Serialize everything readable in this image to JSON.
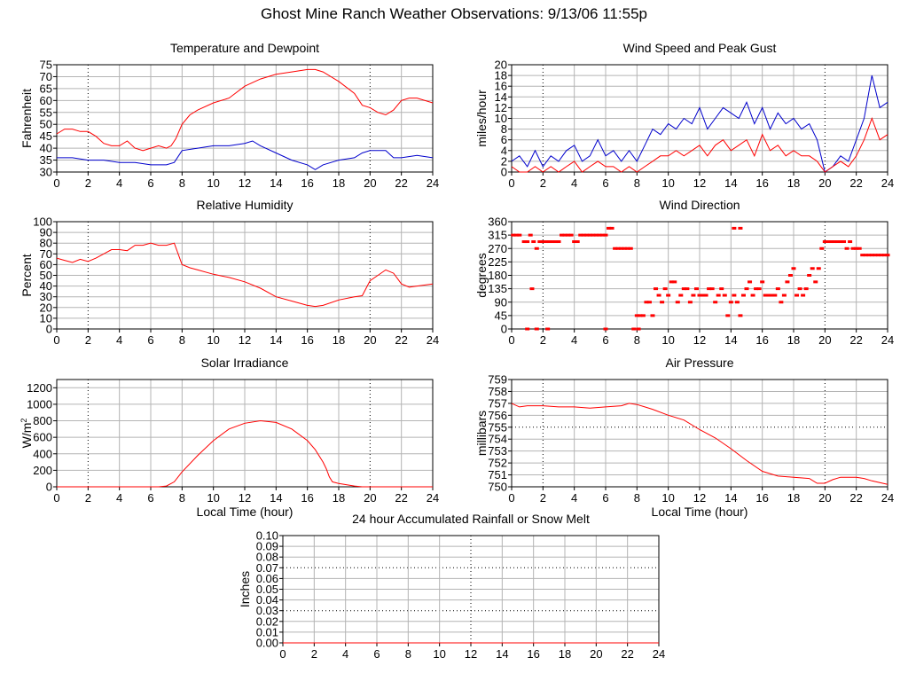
{
  "page": {
    "title": "Ghost Mine Ranch Weather Observations: 9/13/06 11:55p"
  },
  "colors": {
    "red": "#ff0000",
    "blue": "#0000cc",
    "grid": "#b4b4b4",
    "axis": "#000000"
  },
  "chart_data": [
    {
      "id": "temp",
      "type": "line",
      "title": "Temperature and Dewpoint",
      "xlabel": "",
      "ylabel": "Fahrenheit",
      "xlim": [
        0,
        24
      ],
      "ylim": [
        30,
        75
      ],
      "xticks": [
        0,
        2,
        4,
        6,
        8,
        10,
        12,
        14,
        16,
        18,
        20,
        22,
        24
      ],
      "yticks": [
        30,
        35,
        40,
        45,
        50,
        55,
        60,
        65,
        70,
        75
      ],
      "series": [
        {
          "color": "#ff0000",
          "x": [
            0,
            0.5,
            1,
            1.5,
            2,
            2.5,
            3,
            3.5,
            4,
            4.5,
            5,
            5.5,
            6,
            6.5,
            7,
            7.3,
            7.6,
            8,
            8.5,
            9,
            10,
            11,
            12,
            13,
            14,
            15,
            16,
            16.5,
            17,
            18,
            19,
            19.5,
            20,
            20.5,
            21,
            21.5,
            22,
            22.5,
            23,
            24
          ],
          "values": [
            46,
            48,
            48,
            47,
            47,
            45,
            42,
            41,
            41,
            43,
            40,
            39,
            40,
            41,
            40,
            41,
            44,
            50,
            54,
            56,
            59,
            61,
            66,
            69,
            71,
            72,
            73,
            73,
            72,
            68,
            63,
            58,
            57,
            55,
            54,
            56,
            60,
            61,
            61,
            59
          ]
        },
        {
          "color": "#0000cc",
          "x": [
            0,
            1,
            2,
            3,
            4,
            5,
            6,
            7,
            7.5,
            8,
            9,
            10,
            11,
            12,
            12.5,
            13,
            14,
            15,
            16,
            16.5,
            17,
            18,
            19,
            19.5,
            20,
            21,
            21.5,
            22,
            23,
            24
          ],
          "values": [
            36,
            36,
            35,
            35,
            34,
            34,
            33,
            33,
            34,
            39,
            40,
            41,
            41,
            42,
            43,
            41,
            38,
            35,
            33,
            31,
            33,
            35,
            36,
            38,
            39,
            39,
            36,
            36,
            37,
            36
          ]
        }
      ]
    },
    {
      "id": "wind",
      "type": "line",
      "title": "Wind Speed and Peak Gust",
      "xlabel": "",
      "ylabel": "miles/hour",
      "xlim": [
        0,
        24
      ],
      "ylim": [
        0,
        20
      ],
      "xticks": [
        0,
        2,
        4,
        6,
        8,
        10,
        12,
        14,
        16,
        18,
        20,
        22,
        24
      ],
      "yticks": [
        0,
        2,
        4,
        6,
        8,
        10,
        12,
        14,
        16,
        18,
        20
      ],
      "series": [
        {
          "color": "#0000cc",
          "x": [
            0,
            0.5,
            1,
            1.5,
            2,
            2.5,
            3,
            3.5,
            4,
            4.5,
            5,
            5.5,
            6,
            6.5,
            7,
            7.5,
            8,
            8.5,
            9,
            9.5,
            10,
            10.5,
            11,
            11.5,
            12,
            12.5,
            13,
            13.5,
            14,
            14.5,
            15,
            15.5,
            16,
            16.5,
            17,
            17.5,
            18,
            18.5,
            19,
            19.5,
            20,
            20.5,
            21,
            21.5,
            22,
            22.5,
            23,
            23.5,
            24
          ],
          "values": [
            2,
            3,
            1,
            4,
            1,
            3,
            2,
            4,
            5,
            2,
            3,
            6,
            3,
            4,
            2,
            4,
            2,
            5,
            8,
            7,
            9,
            8,
            10,
            9,
            12,
            8,
            10,
            12,
            11,
            10,
            13,
            9,
            12,
            8,
            11,
            9,
            10,
            8,
            9,
            6,
            0,
            1,
            3,
            2,
            6,
            10,
            18,
            12,
            13
          ]
        },
        {
          "color": "#ff0000",
          "x": [
            0,
            0.5,
            1,
            1.5,
            2,
            2.5,
            3,
            3.5,
            4,
            4.5,
            5,
            5.5,
            6,
            6.5,
            7,
            7.5,
            8,
            8.5,
            9,
            9.5,
            10,
            10.5,
            11,
            11.5,
            12,
            12.5,
            13,
            13.5,
            14,
            14.5,
            15,
            15.5,
            16,
            16.5,
            17,
            17.5,
            18,
            18.5,
            19,
            19.5,
            20,
            20.5,
            21,
            21.5,
            22,
            22.5,
            23,
            23.5,
            24
          ],
          "values": [
            1,
            0,
            0,
            1,
            0,
            1,
            0,
            1,
            2,
            0,
            1,
            2,
            1,
            1,
            0,
            1,
            0,
            1,
            2,
            3,
            3,
            4,
            3,
            4,
            5,
            3,
            5,
            6,
            4,
            5,
            6,
            3,
            7,
            4,
            5,
            3,
            4,
            3,
            3,
            2,
            0,
            1,
            2,
            1,
            3,
            6,
            10,
            6,
            7
          ]
        }
      ]
    },
    {
      "id": "rh",
      "type": "line",
      "title": "Relative Humidity",
      "xlabel": "",
      "ylabel": "Percent",
      "xlim": [
        0,
        24
      ],
      "ylim": [
        0,
        100
      ],
      "xticks": [
        0,
        2,
        4,
        6,
        8,
        10,
        12,
        14,
        16,
        18,
        20,
        22,
        24
      ],
      "yticks": [
        0,
        10,
        20,
        30,
        40,
        50,
        60,
        70,
        80,
        90,
        100
      ],
      "series": [
        {
          "color": "#ff0000",
          "x": [
            0,
            0.5,
            1,
            1.5,
            2,
            2.5,
            3,
            3.5,
            4,
            4.5,
            5,
            5.5,
            6,
            6.5,
            7,
            7.5,
            8,
            8.5,
            9,
            10,
            11,
            12,
            13,
            14,
            15,
            16,
            16.5,
            17,
            18,
            19,
            19.5,
            20,
            20.5,
            21,
            21.5,
            22,
            22.5,
            23,
            24
          ],
          "values": [
            66,
            64,
            62,
            65,
            63,
            66,
            70,
            74,
            74,
            73,
            78,
            78,
            80,
            78,
            78,
            80,
            60,
            57,
            55,
            51,
            48,
            44,
            38,
            30,
            26,
            22,
            21,
            22,
            27,
            30,
            31,
            45,
            50,
            55,
            52,
            42,
            39,
            40,
            42
          ]
        }
      ]
    },
    {
      "id": "dir",
      "type": "scatter",
      "title": "Wind Direction",
      "xlabel": "",
      "ylabel": "degrees",
      "xlim": [
        0,
        24
      ],
      "ylim": [
        0,
        360
      ],
      "xticks": [
        0,
        2,
        4,
        6,
        8,
        10,
        12,
        14,
        16,
        18,
        20,
        22,
        24
      ],
      "yticks": [
        0,
        45,
        90,
        135,
        180,
        225,
        270,
        315,
        360
      ],
      "series": [
        {
          "color": "#ff0000",
          "x": [
            0.1,
            0.3,
            0.5,
            0.8,
            1.0,
            1.2,
            1.4,
            1.6,
            1.8,
            2.0,
            2.2,
            2.4,
            2.6,
            2.8,
            3.0,
            3.2,
            3.4,
            3.6,
            3.8,
            4.0,
            4.2,
            4.4,
            4.6,
            4.8,
            5.0,
            5.2,
            5.4,
            5.6,
            5.8,
            6.0,
            6.2,
            6.4,
            6.6,
            6.8,
            7.0,
            7.2,
            7.4,
            7.6,
            7.8,
            8.0,
            8.2,
            8.4,
            8.6,
            8.8,
            9.0,
            9.2,
            9.4,
            9.6,
            9.8,
            10.0,
            10.2,
            10.4,
            10.6,
            10.8,
            11.0,
            11.2,
            11.4,
            11.6,
            11.8,
            12.0,
            12.2,
            12.4,
            12.6,
            12.8,
            13.0,
            13.2,
            13.4,
            13.6,
            13.8,
            14.0,
            14.2,
            14.4,
            14.6,
            14.8,
            15.0,
            15.2,
            15.4,
            15.6,
            15.8,
            16.0,
            16.2,
            16.4,
            16.6,
            16.8,
            17.0,
            17.2,
            17.4,
            17.6,
            17.8,
            18.0,
            18.2,
            18.4,
            18.6,
            18.8,
            19.0,
            19.2,
            19.4,
            19.6,
            19.8,
            20.0,
            20.2,
            20.4,
            20.6,
            20.8,
            21.0,
            21.2,
            21.4,
            21.6,
            21.8,
            22.0,
            22.2,
            22.4,
            22.6,
            22.8,
            23.0,
            23.2,
            23.4,
            23.6,
            23.8,
            24.0,
            1.0,
            1.6,
            14.2,
            14.6,
            0.9,
            2.3,
            1.3,
            6.0,
            8.1
          ],
          "values": [
            315,
            315,
            315,
            293,
            293,
            315,
            293,
            270,
            293,
            293,
            293,
            293,
            293,
            293,
            293,
            315,
            315,
            315,
            315,
            293,
            293,
            315,
            315,
            315,
            315,
            315,
            315,
            315,
            315,
            315,
            338,
            338,
            270,
            270,
            270,
            270,
            270,
            270,
            0,
            45,
            45,
            45,
            90,
            90,
            45,
            135,
            113,
            90,
            135,
            113,
            158,
            158,
            90,
            113,
            135,
            135,
            90,
            113,
            135,
            113,
            113,
            113,
            135,
            135,
            90,
            113,
            135,
            113,
            45,
            90,
            113,
            90,
            45,
            113,
            135,
            158,
            113,
            135,
            135,
            158,
            113,
            113,
            113,
            113,
            135,
            90,
            113,
            158,
            180,
            203,
            113,
            135,
            113,
            135,
            180,
            203,
            158,
            203,
            270,
            293,
            293,
            293,
            293,
            293,
            293,
            293,
            270,
            293,
            270,
            270,
            270,
            248,
            248,
            248,
            248,
            248,
            248,
            248,
            248,
            248,
            0,
            0,
            338,
            338,
            293,
            0,
            135,
            0,
            0
          ]
        }
      ]
    },
    {
      "id": "solar",
      "type": "line",
      "title": "Solar Irradiance",
      "xlabel": "Local Time (hour)",
      "ylabel": "W/m²",
      "xlim": [
        0,
        24
      ],
      "ylim": [
        0,
        1300
      ],
      "xticks": [
        0,
        2,
        4,
        6,
        8,
        10,
        12,
        14,
        16,
        18,
        20,
        22,
        24
      ],
      "yticks": [
        0,
        200,
        400,
        600,
        800,
        1000,
        1200
      ],
      "series": [
        {
          "color": "#ff0000",
          "x": [
            0,
            6.5,
            7,
            7.5,
            8,
            9,
            10,
            11,
            12,
            13,
            14,
            15,
            16,
            16.5,
            17,
            17.2,
            17.4,
            17.6,
            18,
            19,
            19.5,
            20,
            24
          ],
          "values": [
            0,
            0,
            10,
            60,
            180,
            380,
            560,
            700,
            770,
            800,
            780,
            700,
            560,
            450,
            300,
            220,
            120,
            60,
            40,
            10,
            0,
            0,
            0
          ]
        }
      ]
    },
    {
      "id": "pres",
      "type": "line",
      "title": "Air Pressure",
      "xlabel": "Local Time (hour)",
      "ylabel": "millibars",
      "xlim": [
        0,
        24
      ],
      "ylim": [
        750,
        759
      ],
      "xticks": [
        0,
        2,
        4,
        6,
        8,
        10,
        12,
        14,
        16,
        18,
        20,
        22,
        24
      ],
      "yticks": [
        750,
        751,
        752,
        753,
        754,
        755,
        756,
        757,
        758,
        759
      ],
      "series": [
        {
          "color": "#ff0000",
          "x": [
            0,
            0.5,
            1,
            2,
            3,
            4,
            5,
            6,
            7,
            7.5,
            8,
            8.5,
            9,
            10,
            11,
            12,
            13,
            14,
            15,
            16,
            17,
            18,
            19,
            19.5,
            20,
            20.5,
            21,
            22,
            22.5,
            23,
            24
          ],
          "values": [
            757,
            756.7,
            756.8,
            756.8,
            756.7,
            756.7,
            756.6,
            756.7,
            756.8,
            757,
            756.9,
            756.7,
            756.5,
            756,
            755.6,
            754.8,
            754.1,
            753.2,
            752.2,
            751.3,
            750.9,
            750.8,
            750.7,
            750.3,
            750.3,
            750.6,
            750.8,
            750.8,
            750.7,
            750.5,
            750.2
          ]
        }
      ]
    },
    {
      "id": "rain",
      "type": "line",
      "title": "24 hour Accumulated Rainfall or Snow Melt",
      "xlabel": "",
      "ylabel": "Inches",
      "xlim": [
        0,
        24
      ],
      "ylim": [
        0,
        0.1
      ],
      "xticks": [
        0,
        2,
        4,
        6,
        8,
        10,
        12,
        14,
        16,
        18,
        20,
        22,
        24
      ],
      "yticks": [
        0.0,
        0.01,
        0.02,
        0.03,
        0.04,
        0.05,
        0.06,
        0.07,
        0.08,
        0.09,
        0.1
      ],
      "ytick_labels": [
        "0.00",
        "0.01",
        "0.02",
        "0.03",
        "0.04",
        "0.05",
        "0.06",
        "0.07",
        "0.08",
        "0.09",
        "0.10"
      ],
      "series": [
        {
          "color": "#ff0000",
          "x": [
            0,
            24
          ],
          "values": [
            0,
            0
          ]
        }
      ]
    }
  ]
}
